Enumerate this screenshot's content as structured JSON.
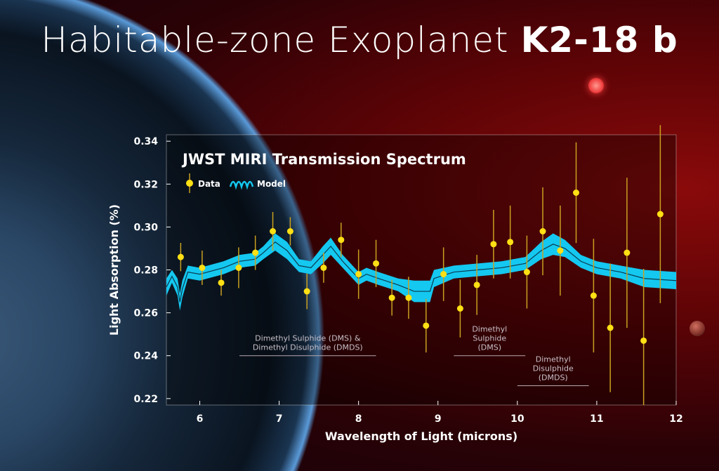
{
  "title": {
    "light": "Habitable-zone Exoplanet",
    "bold": "K2-18 b"
  },
  "chart_data": {
    "type": "scatter",
    "title": "JWST MIRI Transmission Spectrum",
    "xlabel": "Wavelength of Light (microns)",
    "ylabel": "Light Absorption (%)",
    "xlim": [
      5.58,
      12
    ],
    "ylim": [
      0.217,
      0.343
    ],
    "xticks": [
      "6",
      "7",
      "8",
      "9",
      "10",
      "11",
      "12"
    ],
    "yticks": [
      "0.22",
      "0.24",
      "0.26",
      "0.28",
      "0.30",
      "0.32",
      "0.34"
    ],
    "grid": false,
    "legend": {
      "placement": "top-left",
      "entries": [
        "Data",
        "Model"
      ]
    },
    "colors": {
      "data": "#ffe014",
      "errorbar": "#c9a020",
      "model": "#14c8f0",
      "model_line": "#0a3a50"
    },
    "series": [
      {
        "name": "Data",
        "type": "errorbar",
        "x": [
          5.76,
          6.03,
          6.27,
          6.49,
          6.7,
          6.92,
          7.14,
          7.35,
          7.56,
          7.78,
          8.0,
          8.22,
          8.42,
          8.63,
          8.85,
          9.07,
          9.28,
          9.49,
          9.7,
          9.91,
          10.12,
          10.32,
          10.54,
          10.74,
          10.96,
          11.17,
          11.38,
          11.59,
          11.8
        ],
        "y": [
          0.286,
          0.281,
          0.274,
          0.281,
          0.288,
          0.298,
          0.298,
          0.27,
          0.281,
          0.294,
          0.278,
          0.283,
          0.267,
          0.267,
          0.254,
          0.278,
          0.262,
          0.273,
          0.292,
          0.293,
          0.279,
          0.298,
          0.289,
          0.316,
          0.268,
          0.253,
          0.288,
          0.247,
          0.306
        ],
        "yerr": [
          0.0066,
          0.008,
          0.006,
          0.0095,
          0.008,
          0.009,
          0.0066,
          0.0083,
          0.007,
          0.008,
          0.0115,
          0.011,
          0.0083,
          0.0098,
          0.0125,
          0.0125,
          0.0135,
          0.014,
          0.016,
          0.017,
          0.017,
          0.0205,
          0.021,
          0.0235,
          0.0265,
          0.03,
          0.035,
          0.0335,
          0.0415
        ]
      },
      {
        "name": "Model",
        "type": "band",
        "x": [
          5.58,
          5.65,
          5.72,
          5.75,
          5.78,
          5.85,
          6.0,
          6.3,
          6.5,
          6.7,
          6.8,
          6.95,
          7.1,
          7.25,
          7.4,
          7.55,
          7.65,
          7.8,
          8.0,
          8.1,
          8.25,
          8.5,
          8.7,
          8.9,
          8.95,
          9.2,
          9.5,
          9.8,
          10.1,
          10.3,
          10.45,
          10.6,
          10.8,
          11.0,
          11.3,
          11.6,
          12.0
        ],
        "y": [
          0.272,
          0.277,
          0.272,
          0.265,
          0.271,
          0.279,
          0.278,
          0.281,
          0.284,
          0.285,
          0.288,
          0.293,
          0.289,
          0.282,
          0.281,
          0.287,
          0.291,
          0.284,
          0.276,
          0.278,
          0.276,
          0.273,
          0.27,
          0.27,
          0.276,
          0.279,
          0.28,
          0.281,
          0.283,
          0.289,
          0.292,
          0.29,
          0.284,
          0.281,
          0.279,
          0.276,
          0.275
        ],
        "halfwidth": [
          0.004,
          0.003,
          0.004,
          0.004,
          0.004,
          0.003,
          0.003,
          0.003,
          0.003,
          0.003,
          0.003,
          0.004,
          0.004,
          0.003,
          0.003,
          0.004,
          0.004,
          0.003,
          0.003,
          0.003,
          0.003,
          0.003,
          0.005,
          0.005,
          0.004,
          0.003,
          0.003,
          0.003,
          0.003,
          0.004,
          0.005,
          0.004,
          0.003,
          0.003,
          0.003,
          0.004,
          0.004
        ]
      }
    ],
    "annotations": [
      {
        "lines": [
          "Dimethyl Sulphide (DMS) &",
          "Dimethyl Disulphide (DMDS)"
        ],
        "range": [
          6.5,
          8.22
        ],
        "y": 0.24
      },
      {
        "lines": [
          "Dimethyl",
          "Sulphide",
          "(DMS)"
        ],
        "range": [
          9.2,
          10.1
        ],
        "y": 0.24
      },
      {
        "lines": [
          "Dimethyl",
          "Disulphide",
          "(DMDS)"
        ],
        "range": [
          10.0,
          10.9
        ],
        "y": 0.226
      }
    ]
  }
}
